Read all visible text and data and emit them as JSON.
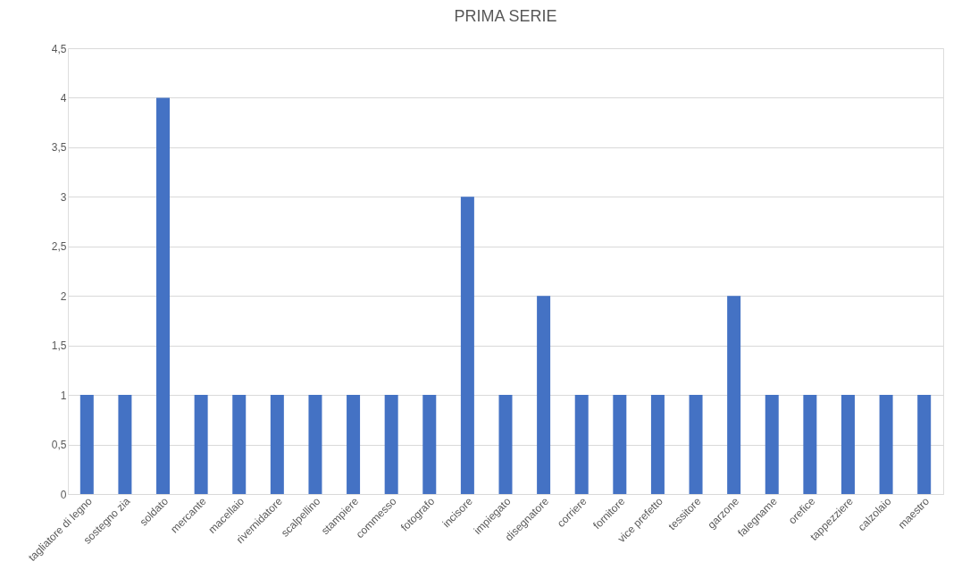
{
  "chart_data": {
    "type": "bar",
    "title": "PRIMA SERIE",
    "categories": [
      "tagliatore di legno",
      "sostegno zia",
      "soldato",
      "mercante",
      "macellaio",
      "rivernidatore",
      "scalpellino",
      "stampiere",
      "commesso",
      "fotografo",
      "incisore",
      "impiegato",
      "disegnatore",
      "corriere",
      "fornitore",
      "vice prefetto",
      "tessitore",
      "garzone",
      "falegname",
      "orefice",
      "tappezziere",
      "calzolaio",
      "maestro"
    ],
    "values": [
      1,
      1,
      4,
      1,
      1,
      1,
      1,
      1,
      1,
      1,
      3,
      1,
      2,
      1,
      1,
      1,
      1,
      2,
      1,
      1,
      1,
      1,
      1
    ],
    "color": "#4472c4",
    "ylim": [
      0,
      4.5
    ],
    "yticks": [
      0,
      {
        "value": 0.5,
        "label": "0,5"
      },
      1,
      {
        "value": 1.5,
        "label": "1,5"
      },
      2,
      {
        "value": 2.5,
        "label": "2,5"
      },
      3,
      {
        "value": 3.5,
        "label": "3,5"
      },
      4,
      {
        "value": 4.5,
        "label": "4,5"
      }
    ],
    "grid": "y"
  }
}
